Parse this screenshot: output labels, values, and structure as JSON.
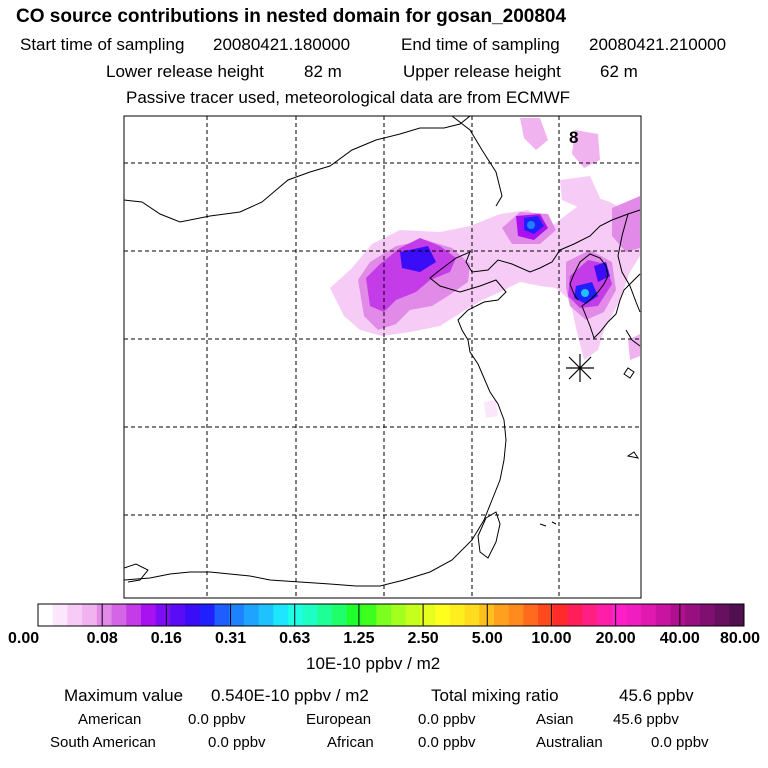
{
  "title": "CO  source contributions in nested domain for gosan_200804",
  "header": {
    "start_label": "Start time of sampling",
    "start_value": "20080421.180000",
    "end_label": "End time of sampling",
    "end_value": "20080421.210000",
    "lower_label": "Lower release height",
    "lower_value": "82 m",
    "upper_label": "Upper release height",
    "upper_value": "62 m",
    "note": "Passive tracer used, meteorological data are from ECMWF"
  },
  "map": {
    "corner_label": "8",
    "receptor": "Gosan"
  },
  "colorbar": {
    "unit": "10E-10 ppbv / m2",
    "tick_labels": [
      "0.00",
      "0.08",
      "0.16",
      "0.31",
      "0.63",
      "1.25",
      "2.50",
      "5.00",
      "10.00",
      "20.00",
      "40.00",
      "80.00"
    ],
    "colors": [
      "#ffffff",
      "#fbe6fb",
      "#f6ccf6",
      "#f0b3f0",
      "#e28ae8",
      "#d466e6",
      "#c43be8",
      "#a812f0",
      "#7d0ef4",
      "#5a0cf6",
      "#3a0cf8",
      "#2020ff",
      "#1e5eff",
      "#1e82ff",
      "#1ea4ff",
      "#1ec2ff",
      "#1ee6ff",
      "#1effe6",
      "#1effc4",
      "#1eff96",
      "#1eff6a",
      "#1eff2c",
      "#3cff1e",
      "#7aff1e",
      "#a2ff1e",
      "#c6ff1e",
      "#e6ff1e",
      "#ffff1e",
      "#ffee1e",
      "#ffdc1e",
      "#ffc01e",
      "#ffa01e",
      "#ff8a1e",
      "#ff6a1e",
      "#ff4a1e",
      "#ff2a2a",
      "#ff1e5a",
      "#ff1e82",
      "#ff1ea8",
      "#ff1ec8",
      "#f01ec0",
      "#e01ab0",
      "#c814a0",
      "#b01090",
      "#981080",
      "#801070",
      "#681060",
      "#501050"
    ]
  },
  "summary": {
    "max_label": "Maximum value",
    "max_value": "0.540E-10 ppbv / m2",
    "total_label": "Total mixing ratio",
    "total_value": "45.6 ppbv",
    "regions": [
      {
        "name": "American",
        "value": "0.0 ppbv"
      },
      {
        "name": "European",
        "value": "0.0 ppbv"
      },
      {
        "name": "Asian",
        "value": "45.6 ppbv"
      },
      {
        "name": "South American",
        "value": "0.0 ppbv"
      },
      {
        "name": "African",
        "value": "0.0 ppbv"
      },
      {
        "name": "Australian",
        "value": "0.0 ppbv"
      }
    ]
  }
}
